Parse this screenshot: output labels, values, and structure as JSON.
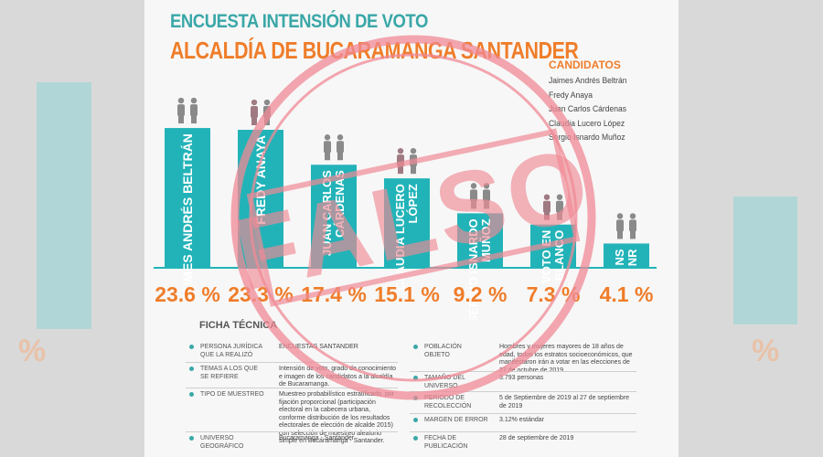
{
  "poster": {
    "title_line1": "ENCUESTA INTENSIÓN DE VOTO",
    "title_line2": "ALCALDÍA DE BUCARAMANGA SANTANDER",
    "stamp_text": "FALSO"
  },
  "legend": {
    "heading": "CANDIDATOS",
    "items": [
      "Jaimes Andrés Beltrán",
      "Fredy Anaya",
      "Juan Carlos Cárdenas",
      "Claudia Lucero López",
      "Sergio Isnardo Muñoz"
    ]
  },
  "colors": {
    "teal": "#22b3b8",
    "orange": "#ef7d2a",
    "title_teal": "#3aa7a8",
    "stamp": "#f08a95"
  },
  "chart_data": {
    "type": "bar",
    "categories": [
      "JAIMES ANDRÉS BELTRÁN",
      "FREDY ANAYA",
      "JUAN CARLOS CÁRDENAS",
      "CLAUDIA LUCERO LÓPEZ",
      "SERGIO ISNARDO MUÑOZ",
      "VOTO EN BLANCO",
      "NS NR"
    ],
    "bar_text": [
      [
        "JAIMES ANDRÉS BELTRÁN"
      ],
      [
        "FREDY ANAYA"
      ],
      [
        "JUAN CARLOS",
        "CÁRDENAS"
      ],
      [
        "CLAUDIA LUCERO",
        "LÓPEZ"
      ],
      [
        "SERGIO ISNARDO",
        "MUÑOZ"
      ],
      [
        "VOTO EN",
        "BLANCO"
      ],
      [
        "NS",
        "NR"
      ]
    ],
    "values": [
      23.6,
      23.3,
      17.4,
      15.1,
      9.2,
      7.3,
      4.1
    ],
    "value_labels": [
      "23.6 %",
      "23.3 %",
      "17.4 %",
      "15.1 %",
      "9.2 %",
      "7.3 %",
      "4.1 %"
    ],
    "ylim": [
      0,
      25
    ],
    "grid": false,
    "legend_position": "top-right"
  },
  "ficha": {
    "heading": "FICHA TÉCNICA",
    "left": [
      {
        "key": "PERSONA JURÍDICA QUE LA REALIZÓ",
        "value": "ENCUESTAS SANTANDER"
      },
      {
        "key": "TEMAS A LOS QUE SE REFIERE",
        "value": "Intensión de voto, grado de conocimiento e imagen de los candidatos a la alcaldía de Bucaramanga."
      },
      {
        "key": "TIPO DE MUESTREO",
        "value": "Muestreo probabilístico estratificado, por fijación proporcional (participación electoral en la cabecera urbana, conforme distribución de los resultados electorales de elección de alcalde 2015) con selección de muestreo aleatorio simple en Bucaramanga - Santander."
      },
      {
        "key": "UNIVERSO GEOGRÁFICO",
        "value": "Bucaramanga - Santander"
      }
    ],
    "right": [
      {
        "key": "POBLACIÓN OBJETO",
        "value": "Hombres y mujeres mayores de 18 años de edad, todos los estratos socioeconómicos, que manifestaron irán a votar en las elecciones de 27 de octubre de 2019."
      },
      {
        "key": "TAMAÑO DEL UNIVERSO",
        "value": "3.793 personas"
      },
      {
        "key": "PERIODO DE RECOLECCIÓN",
        "value": "5 de Septiembre de 2019 al 27 de septiembre de 2019"
      },
      {
        "key": "MARGEN DE ERROR",
        "value": "3.12% estándar"
      },
      {
        "key": "FECHA DE PUBLICACIÓN",
        "value": "28 de septiembre de 2019"
      }
    ]
  }
}
